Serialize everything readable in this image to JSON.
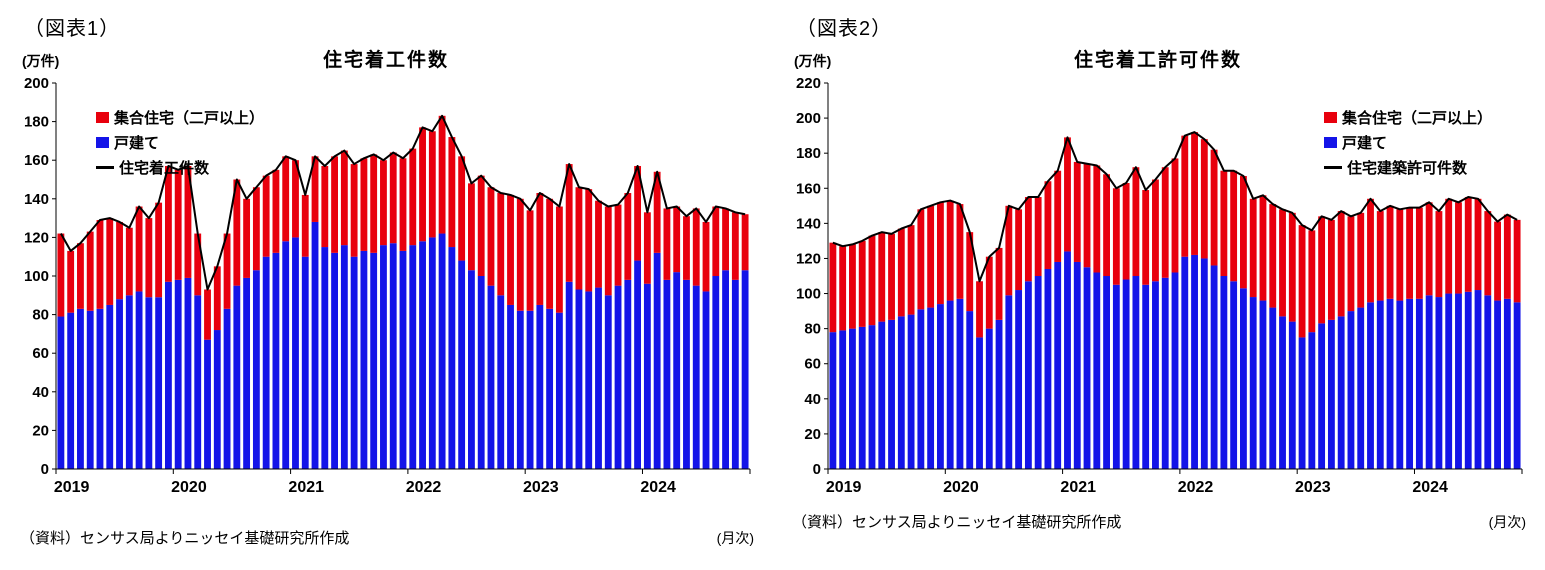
{
  "figures": [
    {
      "tag": "（図表1）",
      "title": "住宅着工件数",
      "y_unit": "(万件)",
      "x_unit": "(月次)",
      "source": "（資料）センサス局よりニッセイ基礎研究所作成",
      "legend": {
        "multi": "集合住宅（二戸以上）",
        "single": "戸建て",
        "line": "住宅着工件数"
      },
      "colors": {
        "multi": "#e8000d",
        "single": "#1414e8",
        "line": "#000000"
      }
    },
    {
      "tag": "（図表2）",
      "title": "住宅着工許可件数",
      "y_unit": "(万件)",
      "x_unit": "(月次)",
      "source": "（資料）センサス局よりニッセイ基礎研究所作成",
      "legend": {
        "multi": "集合住宅（二戸以上）",
        "single": "戸建て",
        "line": "住宅建築許可件数"
      },
      "colors": {
        "multi": "#e8000d",
        "single": "#1414e8",
        "line": "#000000"
      }
    }
  ],
  "chart_data": [
    {
      "type": "bar",
      "stacked": true,
      "title": "住宅着工件数",
      "ylabel": "万件",
      "ylim": [
        0,
        200
      ],
      "ytick_step": 20,
      "frequency": "monthly",
      "x_start": "2019-01",
      "x_end": "2024-11",
      "x_years": [
        2019,
        2020,
        2021,
        2022,
        2023,
        2024
      ],
      "legend_position": "top-left",
      "series": [
        {
          "name": "戸建て",
          "color": "#1414e8",
          "values": [
            79,
            81,
            83,
            82,
            83,
            85,
            88,
            90,
            92,
            89,
            89,
            97,
            98,
            99,
            90,
            67,
            72,
            83,
            95,
            99,
            103,
            110,
            112,
            118,
            120,
            110,
            128,
            115,
            112,
            116,
            110,
            113,
            112,
            116,
            117,
            113,
            116,
            118,
            120,
            122,
            115,
            108,
            103,
            100,
            95,
            90,
            85,
            82,
            82,
            85,
            83,
            81,
            97,
            93,
            92,
            94,
            90,
            95,
            98,
            108,
            96,
            112,
            98,
            102,
            98,
            95,
            92,
            100,
            103,
            98,
            103
          ]
        },
        {
          "name": "集合住宅（二戸以上）",
          "color": "#e8000d",
          "values": [
            43,
            32,
            34,
            41,
            46,
            45,
            40,
            35,
            44,
            41,
            49,
            60,
            57,
            58,
            32,
            26,
            33,
            39,
            55,
            41,
            43,
            42,
            43,
            44,
            40,
            32,
            34,
            42,
            50,
            49,
            48,
            48,
            51,
            44,
            47,
            48,
            50,
            59,
            55,
            61,
            57,
            54,
            45,
            52,
            51,
            53,
            57,
            58,
            52,
            58,
            57,
            55,
            61,
            53,
            53,
            45,
            46,
            42,
            45,
            49,
            37,
            42,
            37,
            34,
            33,
            40,
            36,
            36,
            32,
            35,
            29
          ]
        }
      ],
      "line": {
        "name": "住宅着工件数",
        "color": "#000000",
        "values": "sum_of_series"
      }
    },
    {
      "type": "bar",
      "stacked": true,
      "title": "住宅着工許可件数",
      "ylabel": "万件",
      "ylim": [
        0,
        220
      ],
      "ytick_step": 20,
      "frequency": "monthly",
      "x_start": "2019-01",
      "x_end": "2024-11",
      "x_years": [
        2019,
        2020,
        2021,
        2022,
        2023,
        2024
      ],
      "legend_position": "top-right",
      "series": [
        {
          "name": "戸建て",
          "color": "#1414e8",
          "values": [
            78,
            79,
            80,
            81,
            82,
            84,
            85,
            87,
            88,
            91,
            92,
            94,
            96,
            97,
            90,
            75,
            80,
            85,
            99,
            102,
            107,
            110,
            114,
            118,
            124,
            118,
            115,
            112,
            110,
            105,
            108,
            110,
            105,
            107,
            109,
            112,
            121,
            122,
            120,
            116,
            110,
            107,
            103,
            98,
            96,
            92,
            87,
            84,
            75,
            78,
            83,
            85,
            87,
            90,
            92,
            95,
            96,
            97,
            96,
            97,
            97,
            99,
            98,
            100,
            100,
            101,
            102,
            99,
            96,
            97,
            95
          ]
        },
        {
          "name": "集合住宅（二戸以上）",
          "color": "#e8000d",
          "values": [
            51,
            48,
            48,
            49,
            51,
            51,
            49,
            50,
            51,
            57,
            58,
            58,
            57,
            54,
            45,
            32,
            41,
            41,
            51,
            46,
            48,
            45,
            50,
            52,
            65,
            57,
            59,
            61,
            58,
            55,
            55,
            62,
            54,
            58,
            63,
            65,
            69,
            70,
            68,
            66,
            60,
            63,
            64,
            56,
            60,
            59,
            61,
            62,
            64,
            58,
            61,
            57,
            60,
            54,
            54,
            59,
            51,
            53,
            52,
            52,
            52,
            53,
            49,
            54,
            52,
            54,
            52,
            48,
            45,
            48,
            47
          ]
        }
      ],
      "line": {
        "name": "住宅建築許可件数",
        "color": "#000000",
        "values": "sum_of_series"
      }
    }
  ]
}
